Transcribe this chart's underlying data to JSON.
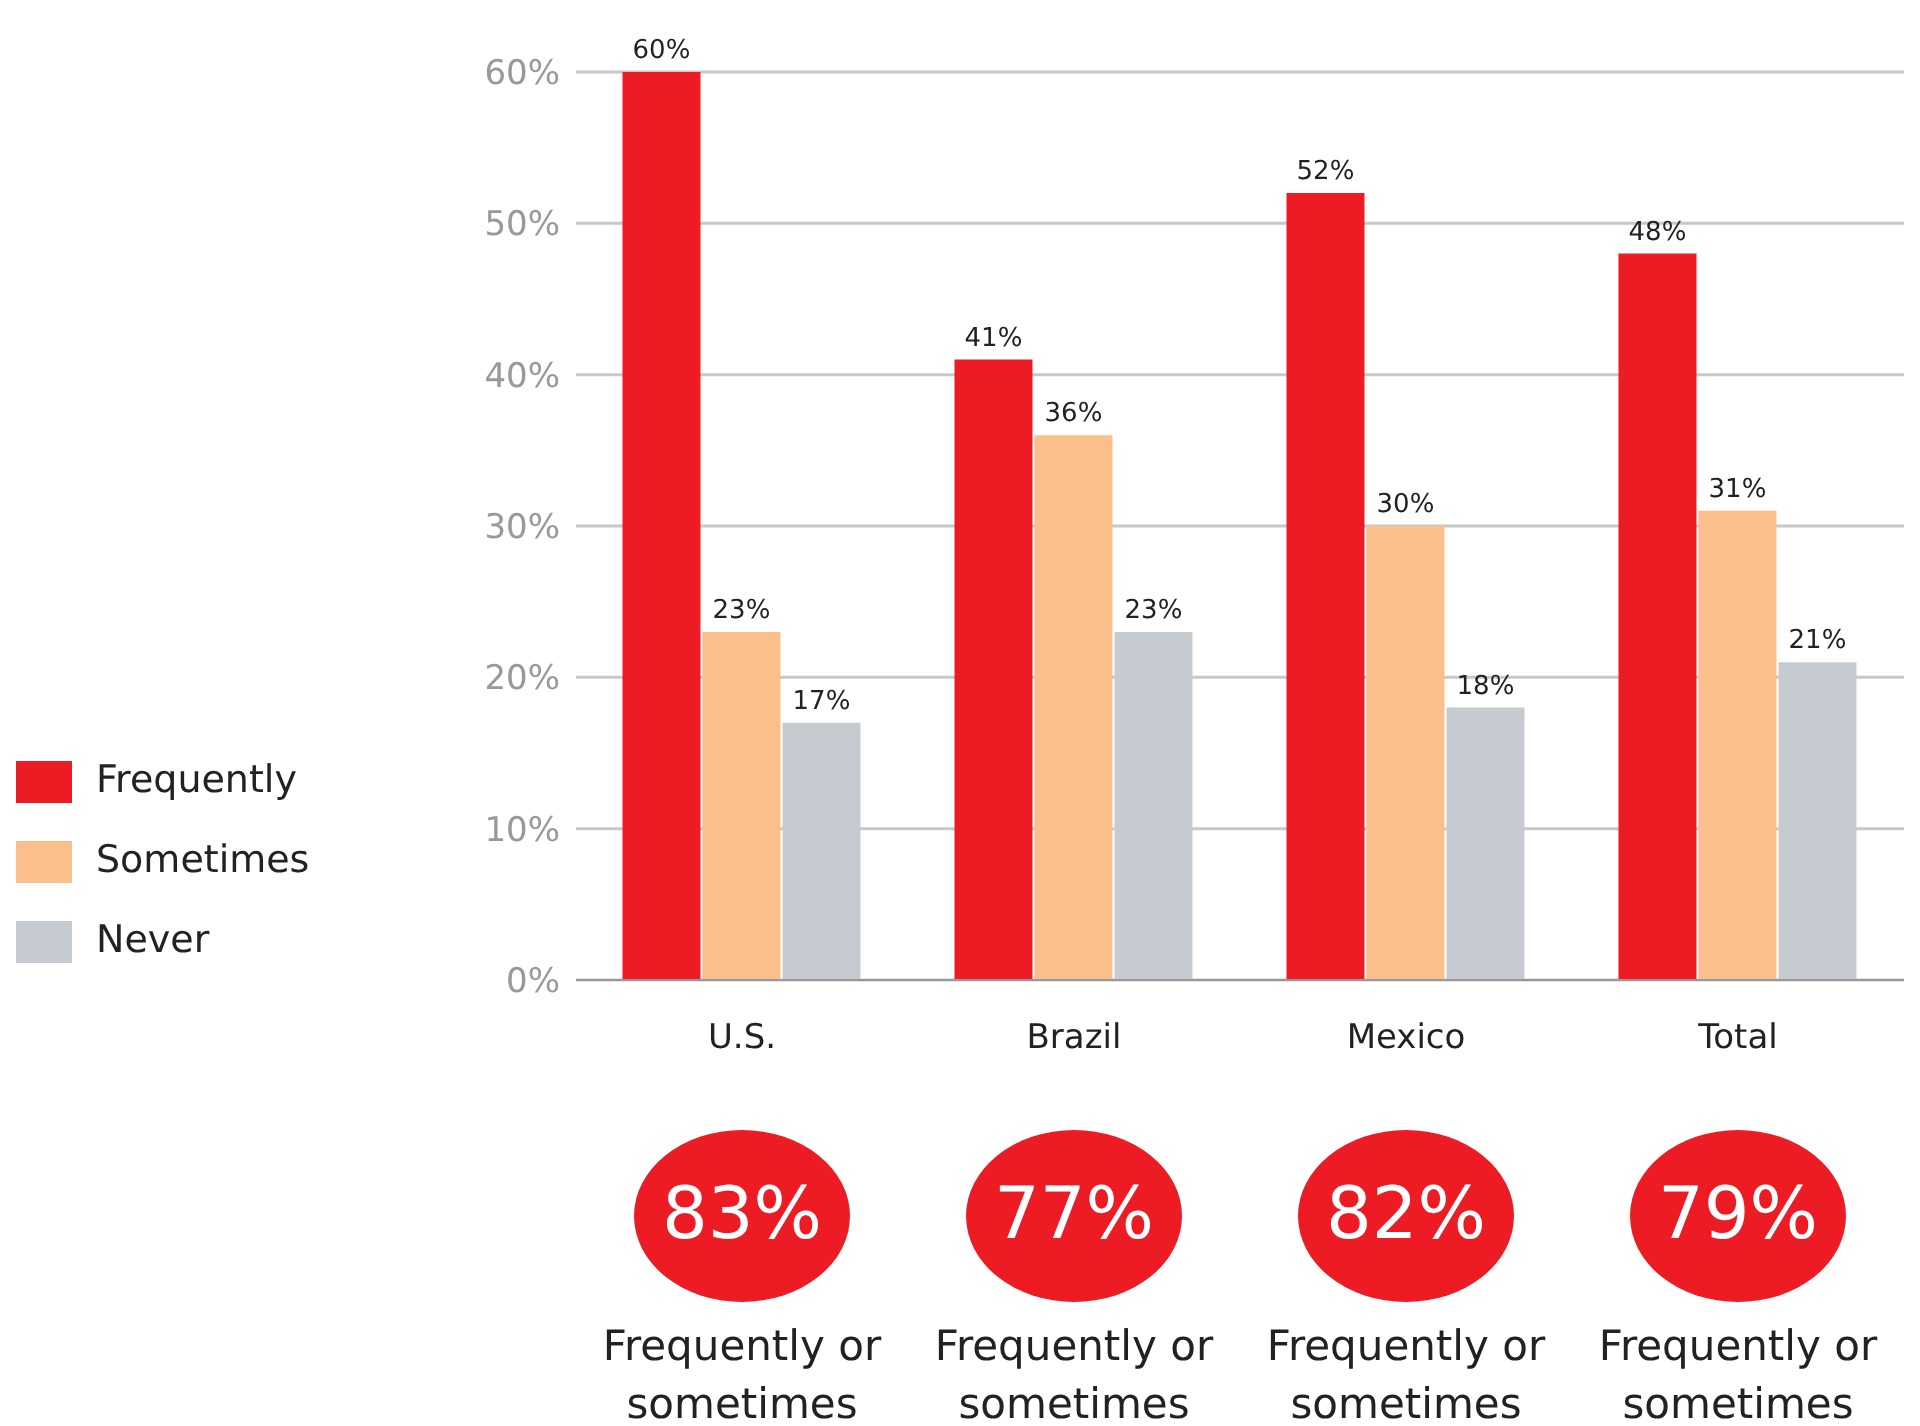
{
  "chart_data": {
    "type": "bar",
    "categories": [
      "U.S.",
      "Brazil",
      "Mexico",
      "Total"
    ],
    "series": [
      {
        "name": "Frequently",
        "color": "#ed1c24",
        "values": [
          60,
          41,
          52,
          48
        ],
        "value_labels": [
          "60%",
          "41%",
          "52%",
          "48%"
        ]
      },
      {
        "name": "Sometimes",
        "color": "#fbbf8c",
        "values": [
          23,
          36,
          30,
          31
        ],
        "value_labels": [
          "23%",
          "36%",
          "30%",
          "31%"
        ]
      },
      {
        "name": "Never",
        "color": "#c5cbd1",
        "values": [
          17,
          23,
          18,
          21
        ],
        "value_labels": [
          "17%",
          "23%",
          "18%",
          "21%"
        ]
      }
    ],
    "ylim": [
      0,
      60
    ],
    "yticks": [
      {
        "value": 0,
        "label": "0%"
      },
      {
        "value": 10,
        "label": "10%"
      },
      {
        "value": 20,
        "label": "20%"
      },
      {
        "value": 30,
        "label": "30%"
      },
      {
        "value": 40,
        "label": "40%"
      },
      {
        "value": 50,
        "label": "50%"
      },
      {
        "value": 60,
        "label": "60%"
      }
    ],
    "grid": "y",
    "legend": "left",
    "annotations": [
      "83%",
      "Frequently or sometimes",
      "77%",
      "Frequently or sometimes",
      "82%",
      "Frequently or sometimes",
      "79%",
      "Frequently or sometimes"
    ]
  }
}
